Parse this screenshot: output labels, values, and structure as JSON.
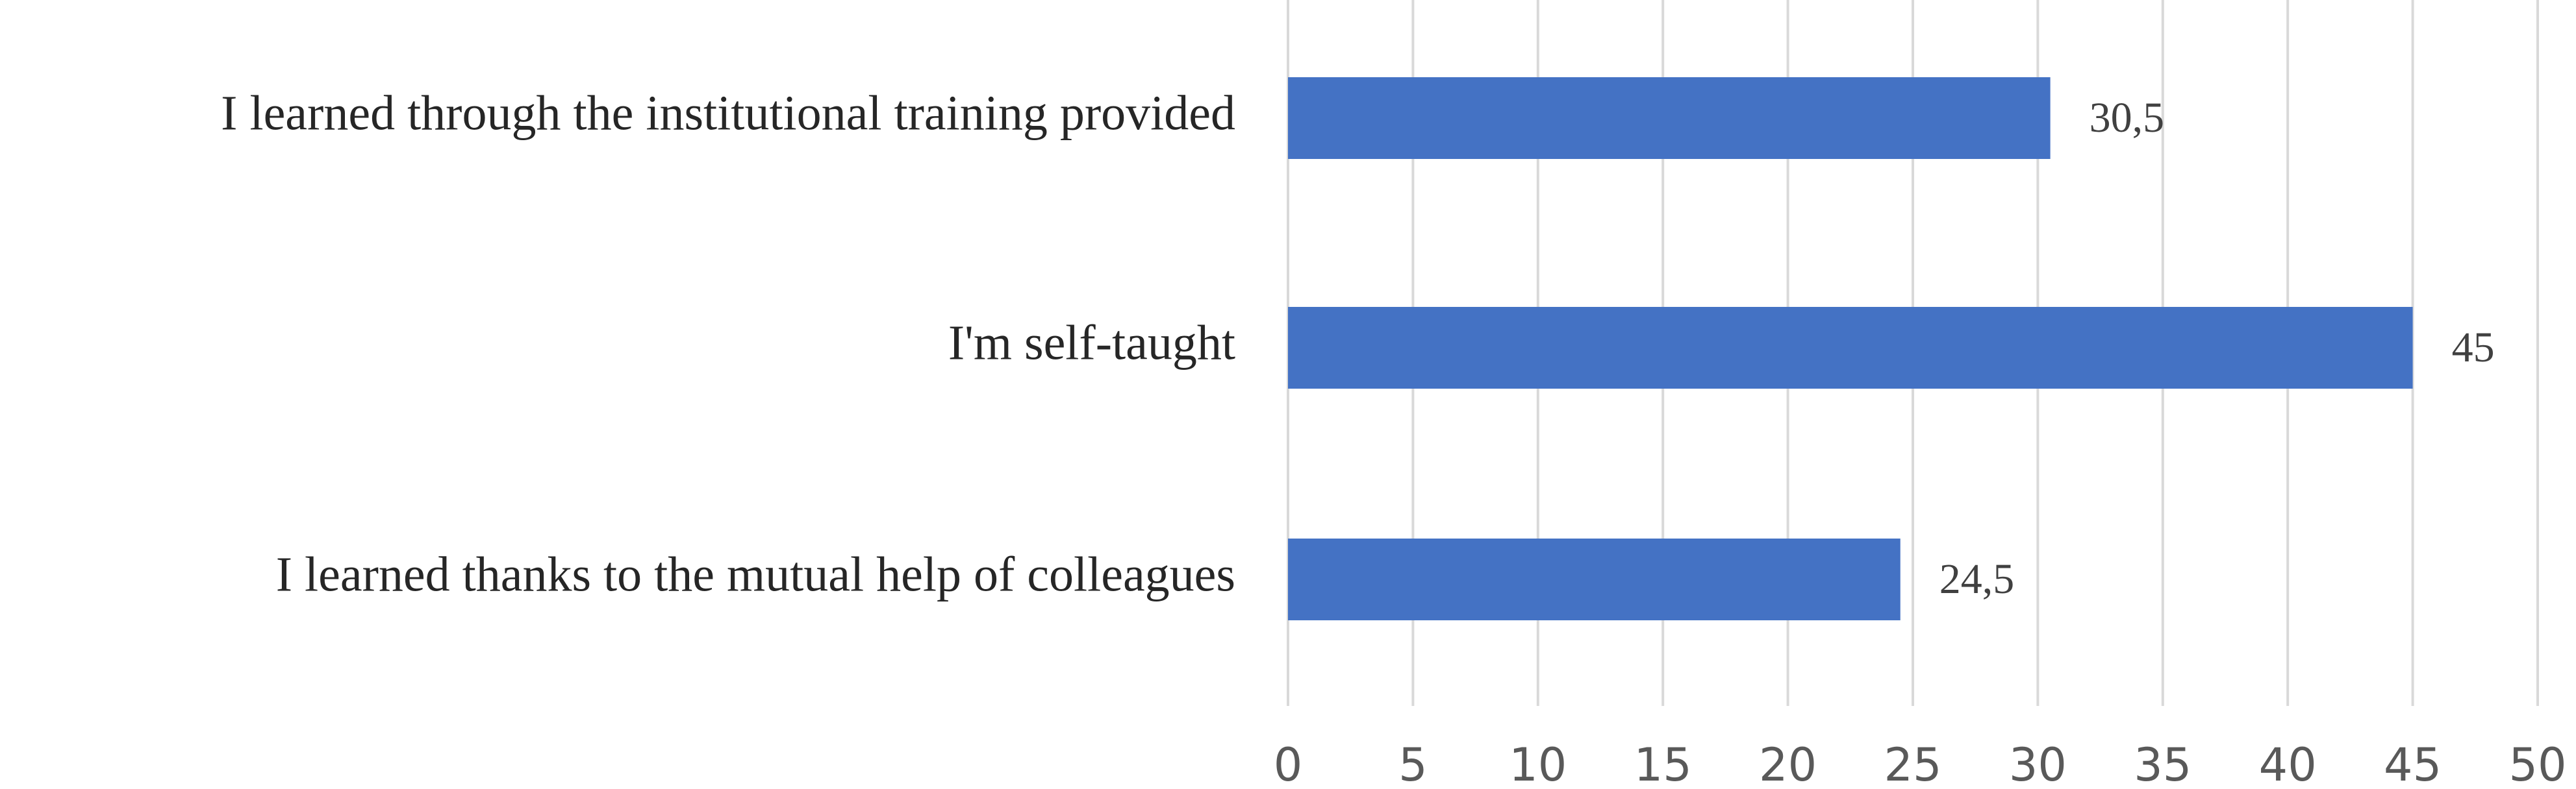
{
  "chart_data": {
    "type": "hbar",
    "categories": [
      "I learned through the institutional training provided",
      "I'm self-taught",
      "I learned thanks to the mutual help of colleagues"
    ],
    "values": [
      30.5,
      45,
      24.5
    ],
    "value_labels": [
      "30,5",
      "45",
      "24,5"
    ],
    "color": "#4472c4",
    "xlim": [
      0,
      50
    ],
    "xticks": [
      0,
      5,
      10,
      15,
      20,
      25,
      30,
      35,
      40,
      45,
      50
    ],
    "grid": true
  }
}
